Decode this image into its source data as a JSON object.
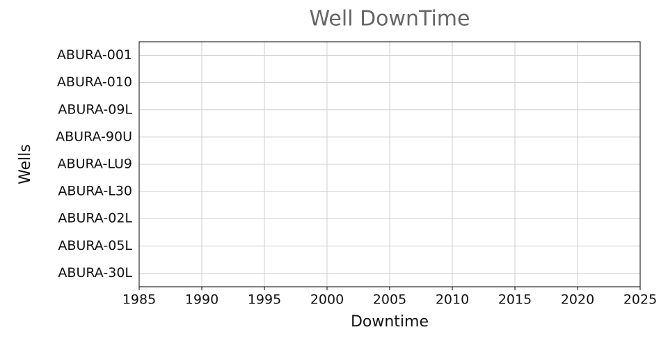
{
  "chart_data": {
    "type": "bar",
    "title": "Well DownTime",
    "x_label": "Downtime",
    "y_label": "Wells",
    "categories": [
      "ABURA-001",
      "ABURA-010",
      "ABURA-09L",
      "ABURA-90U",
      "ABURA-LU9",
      "ABURA-L30",
      "ABURA-02L",
      "ABURA-05L",
      "ABURA-30L"
    ],
    "xlim": [
      1985,
      2025
    ],
    "xticks": [
      1985,
      1990,
      1995,
      2000,
      2005,
      2010,
      2015,
      2020,
      2025
    ],
    "grid": true
  }
}
